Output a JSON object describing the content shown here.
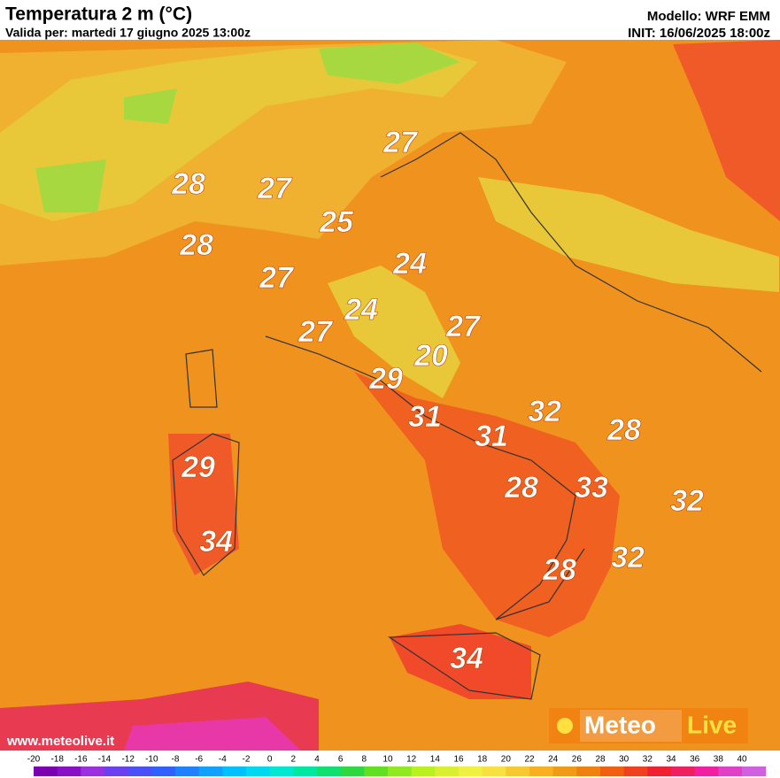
{
  "header": {
    "title": "Temperatura 2 m (°C)",
    "subtitle": "Valida per: martedi 17 giugno 2025 13:00z",
    "model": "Modello: WRF EMM",
    "init": "INIT: 16/06/2025 18:00z"
  },
  "labels": [
    27,
    28,
    27,
    25,
    28,
    24,
    27,
    24,
    27,
    27,
    20,
    29,
    31,
    32,
    31,
    28,
    29,
    28,
    33,
    32,
    34,
    32,
    28,
    34
  ],
  "website": "www.meteolive.it",
  "logo": {
    "left": "Meteo",
    "right": "Live"
  },
  "colorbar": {
    "ticks": [
      -20,
      -18,
      -16,
      -14,
      -12,
      -10,
      -8,
      -6,
      -4,
      -2,
      0,
      2,
      4,
      6,
      8,
      10,
      12,
      14,
      16,
      18,
      20,
      22,
      24,
      26,
      28,
      30,
      32,
      34,
      36,
      38,
      40
    ],
    "colors": [
      "#7a00b0",
      "#8a10c8",
      "#9a30e0",
      "#6a40f0",
      "#4a50f8",
      "#3060ff",
      "#2080ff",
      "#10a0ff",
      "#00c0ff",
      "#00d8f0",
      "#00e8d0",
      "#00e8a0",
      "#10e070",
      "#30d840",
      "#60e020",
      "#90e820",
      "#b8f020",
      "#d8f030",
      "#f0f040",
      "#f8e040",
      "#f8c830",
      "#f8b020",
      "#f09a18",
      "#f08010",
      "#f06010",
      "#f04020",
      "#f02030",
      "#f02060",
      "#f020a0",
      "#e040c8",
      "#d060e0"
    ]
  }
}
